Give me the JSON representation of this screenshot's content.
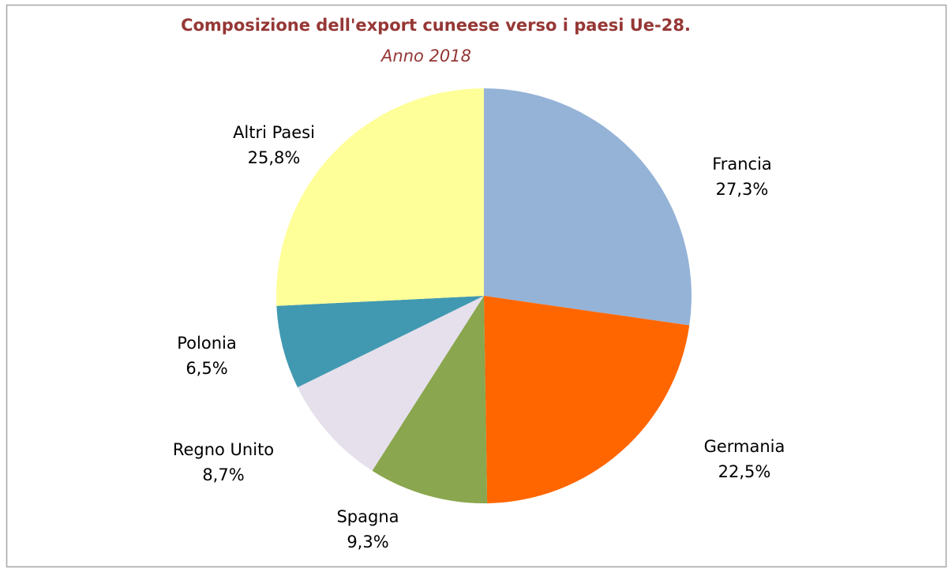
{
  "chart_data": {
    "type": "pie",
    "title": "Composizione dell'export cuneese verso i  paesi Ue-28.",
    "subtitle": "Anno 2018",
    "categories": [
      "Francia",
      "Germania",
      "Spagna",
      "Regno Unito",
      "Polonia",
      "Altri Paesi"
    ],
    "values": [
      27.3,
      22.5,
      9.3,
      8.7,
      6.5,
      25.8
    ],
    "value_labels": [
      "27,3%",
      "22,5%",
      "9,3%",
      "8,7%",
      "6,5%",
      "25,8%"
    ],
    "colors": [
      "#95b3d7",
      "#ff6600",
      "#8aa64e",
      "#e6e0ec",
      "#4199b1",
      "#ffff99"
    ]
  }
}
